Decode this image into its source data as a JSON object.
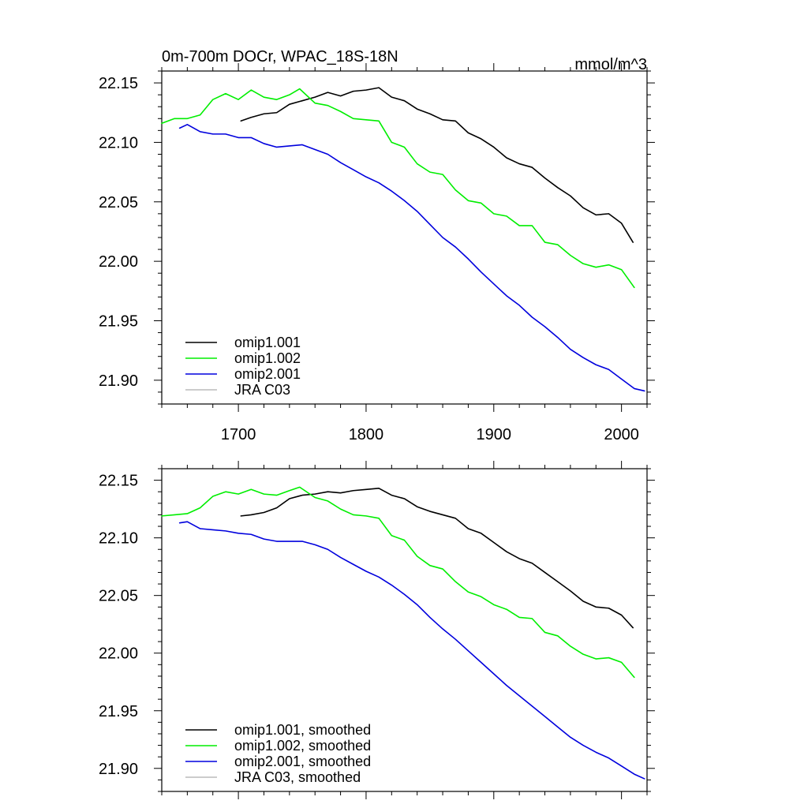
{
  "chart_data": [
    {
      "type": "line",
      "title": "0m-700m DOCr, WPAC_18S-18N",
      "units": "mmol/m^3",
      "xlim": [
        1640,
        2020
      ],
      "ylim": [
        21.88,
        22.16
      ],
      "x_ticks": [
        1700,
        1800,
        1900,
        2000
      ],
      "x_tick_labels": [
        "1700",
        "1800",
        "1900",
        "2000"
      ],
      "y_ticks": [
        21.9,
        21.95,
        22.0,
        22.05,
        22.1,
        22.15
      ],
      "y_tick_labels": [
        "21.90",
        "21.95",
        "22.00",
        "22.05",
        "22.10",
        "22.15"
      ],
      "grid": false,
      "legend_position": "bottom-left",
      "series": [
        {
          "name": "omip1.001",
          "color": "#000000",
          "x": [
            1702,
            1710,
            1720,
            1730,
            1740,
            1750,
            1760,
            1770,
            1780,
            1790,
            1800,
            1810,
            1820,
            1830,
            1840,
            1850,
            1860,
            1870,
            1880,
            1890,
            1900,
            1910,
            1920,
            1930,
            1940,
            1950,
            1960,
            1970,
            1980,
            1990,
            2000,
            2009
          ],
          "y": [
            22.118,
            22.121,
            22.124,
            22.125,
            22.132,
            22.135,
            22.138,
            22.142,
            22.139,
            22.143,
            22.144,
            22.146,
            22.138,
            22.135,
            22.128,
            22.124,
            22.119,
            22.118,
            22.108,
            22.103,
            22.096,
            22.087,
            22.082,
            22.079,
            22.07,
            22.062,
            22.055,
            22.045,
            22.039,
            22.04,
            22.032,
            22.016
          ]
        },
        {
          "name": "omip1.002",
          "color": "#00ee00",
          "x": [
            1640,
            1650,
            1660,
            1670,
            1680,
            1690,
            1700,
            1710,
            1720,
            1730,
            1740,
            1748,
            1760,
            1770,
            1780,
            1790,
            1800,
            1810,
            1820,
            1830,
            1840,
            1850,
            1860,
            1870,
            1880,
            1890,
            1900,
            1910,
            1920,
            1930,
            1940,
            1950,
            1960,
            1970,
            1980,
            1990,
            2000,
            2010
          ],
          "y": [
            22.116,
            22.12,
            22.12,
            22.123,
            22.136,
            22.141,
            22.136,
            22.144,
            22.138,
            22.136,
            22.14,
            22.145,
            22.133,
            22.131,
            22.126,
            22.12,
            22.119,
            22.118,
            22.1,
            22.096,
            22.082,
            22.075,
            22.073,
            22.06,
            22.051,
            22.049,
            22.04,
            22.038,
            22.03,
            22.03,
            22.016,
            22.014,
            22.005,
            21.998,
            21.995,
            21.997,
            21.993,
            21.978
          ]
        },
        {
          "name": "omip2.001",
          "color": "#0000dd",
          "x": [
            1654,
            1660,
            1670,
            1680,
            1690,
            1700,
            1710,
            1720,
            1730,
            1740,
            1750,
            1760,
            1770,
            1780,
            1790,
            1800,
            1810,
            1820,
            1830,
            1840,
            1850,
            1860,
            1870,
            1880,
            1890,
            1900,
            1910,
            1920,
            1930,
            1940,
            1950,
            1960,
            1970,
            1980,
            1990,
            2000,
            2010,
            2018
          ],
          "y": [
            22.112,
            22.115,
            22.109,
            22.107,
            22.107,
            22.104,
            22.104,
            22.099,
            22.096,
            22.097,
            22.098,
            22.094,
            22.09,
            22.083,
            22.077,
            22.071,
            22.066,
            22.059,
            22.051,
            22.042,
            22.031,
            22.02,
            22.012,
            22.002,
            21.991,
            21.981,
            21.971,
            21.963,
            21.953,
            21.945,
            21.936,
            21.926,
            21.919,
            21.913,
            21.909,
            21.901,
            21.893,
            21.891
          ]
        },
        {
          "name": "JRA C03",
          "color": "#bbbbbb",
          "x": [],
          "y": []
        }
      ]
    },
    {
      "type": "line",
      "title": "",
      "xlim": [
        1640,
        2020
      ],
      "ylim": [
        21.88,
        22.16
      ],
      "x_ticks": [
        1700,
        1800,
        1900,
        2000
      ],
      "x_tick_labels": [],
      "y_ticks": [
        21.9,
        21.95,
        22.0,
        22.05,
        22.1,
        22.15
      ],
      "y_tick_labels": [
        "21.90",
        "21.95",
        "22.00",
        "22.05",
        "22.10",
        "22.15"
      ],
      "grid": false,
      "legend_position": "bottom-left",
      "series": [
        {
          "name": "omip1.001, smoothed",
          "color": "#000000",
          "x": [
            1702,
            1710,
            1720,
            1730,
            1740,
            1750,
            1760,
            1770,
            1780,
            1790,
            1800,
            1810,
            1820,
            1830,
            1840,
            1850,
            1860,
            1870,
            1880,
            1890,
            1900,
            1910,
            1920,
            1930,
            1940,
            1950,
            1960,
            1970,
            1980,
            1990,
            2000,
            2009
          ],
          "y": [
            22.119,
            22.12,
            22.122,
            22.126,
            22.134,
            22.137,
            22.138,
            22.14,
            22.139,
            22.141,
            22.142,
            22.143,
            22.137,
            22.134,
            22.127,
            22.123,
            22.12,
            22.117,
            22.108,
            22.104,
            22.096,
            22.088,
            22.082,
            22.078,
            22.07,
            22.062,
            22.054,
            22.045,
            22.04,
            22.039,
            22.033,
            22.022
          ]
        },
        {
          "name": "omip1.002, smoothed",
          "color": "#00ee00",
          "x": [
            1640,
            1650,
            1660,
            1670,
            1680,
            1690,
            1700,
            1710,
            1720,
            1730,
            1740,
            1748,
            1760,
            1770,
            1780,
            1790,
            1800,
            1810,
            1820,
            1830,
            1840,
            1850,
            1860,
            1870,
            1880,
            1890,
            1900,
            1910,
            1920,
            1930,
            1940,
            1950,
            1960,
            1970,
            1980,
            1990,
            2000,
            2010
          ],
          "y": [
            22.119,
            22.12,
            22.121,
            22.126,
            22.136,
            22.14,
            22.138,
            22.142,
            22.138,
            22.137,
            22.141,
            22.144,
            22.135,
            22.132,
            22.125,
            22.12,
            22.119,
            22.117,
            22.102,
            22.098,
            22.084,
            22.076,
            22.073,
            22.062,
            22.053,
            22.049,
            22.042,
            22.038,
            22.031,
            22.03,
            22.018,
            22.015,
            22.006,
            21.999,
            21.995,
            21.996,
            21.992,
            21.979
          ]
        },
        {
          "name": "omip2.001, smoothed",
          "color": "#0000dd",
          "x": [
            1654,
            1660,
            1670,
            1680,
            1690,
            1700,
            1710,
            1720,
            1730,
            1740,
            1750,
            1760,
            1770,
            1780,
            1790,
            1800,
            1810,
            1820,
            1830,
            1840,
            1850,
            1860,
            1870,
            1880,
            1890,
            1900,
            1910,
            1920,
            1930,
            1940,
            1950,
            1960,
            1970,
            1980,
            1990,
            2000,
            2010,
            2018
          ],
          "y": [
            22.113,
            22.114,
            22.108,
            22.107,
            22.106,
            22.104,
            22.103,
            22.099,
            22.097,
            22.097,
            22.097,
            22.094,
            22.09,
            22.083,
            22.077,
            22.071,
            22.066,
            22.059,
            22.051,
            22.042,
            22.031,
            22.021,
            22.012,
            22.002,
            21.992,
            21.982,
            21.972,
            21.963,
            21.954,
            21.945,
            21.936,
            21.927,
            21.92,
            21.914,
            21.909,
            21.902,
            21.895,
            21.891
          ]
        },
        {
          "name": "JRA C03, smoothed",
          "color": "#bbbbbb",
          "x": [],
          "y": []
        }
      ]
    }
  ]
}
